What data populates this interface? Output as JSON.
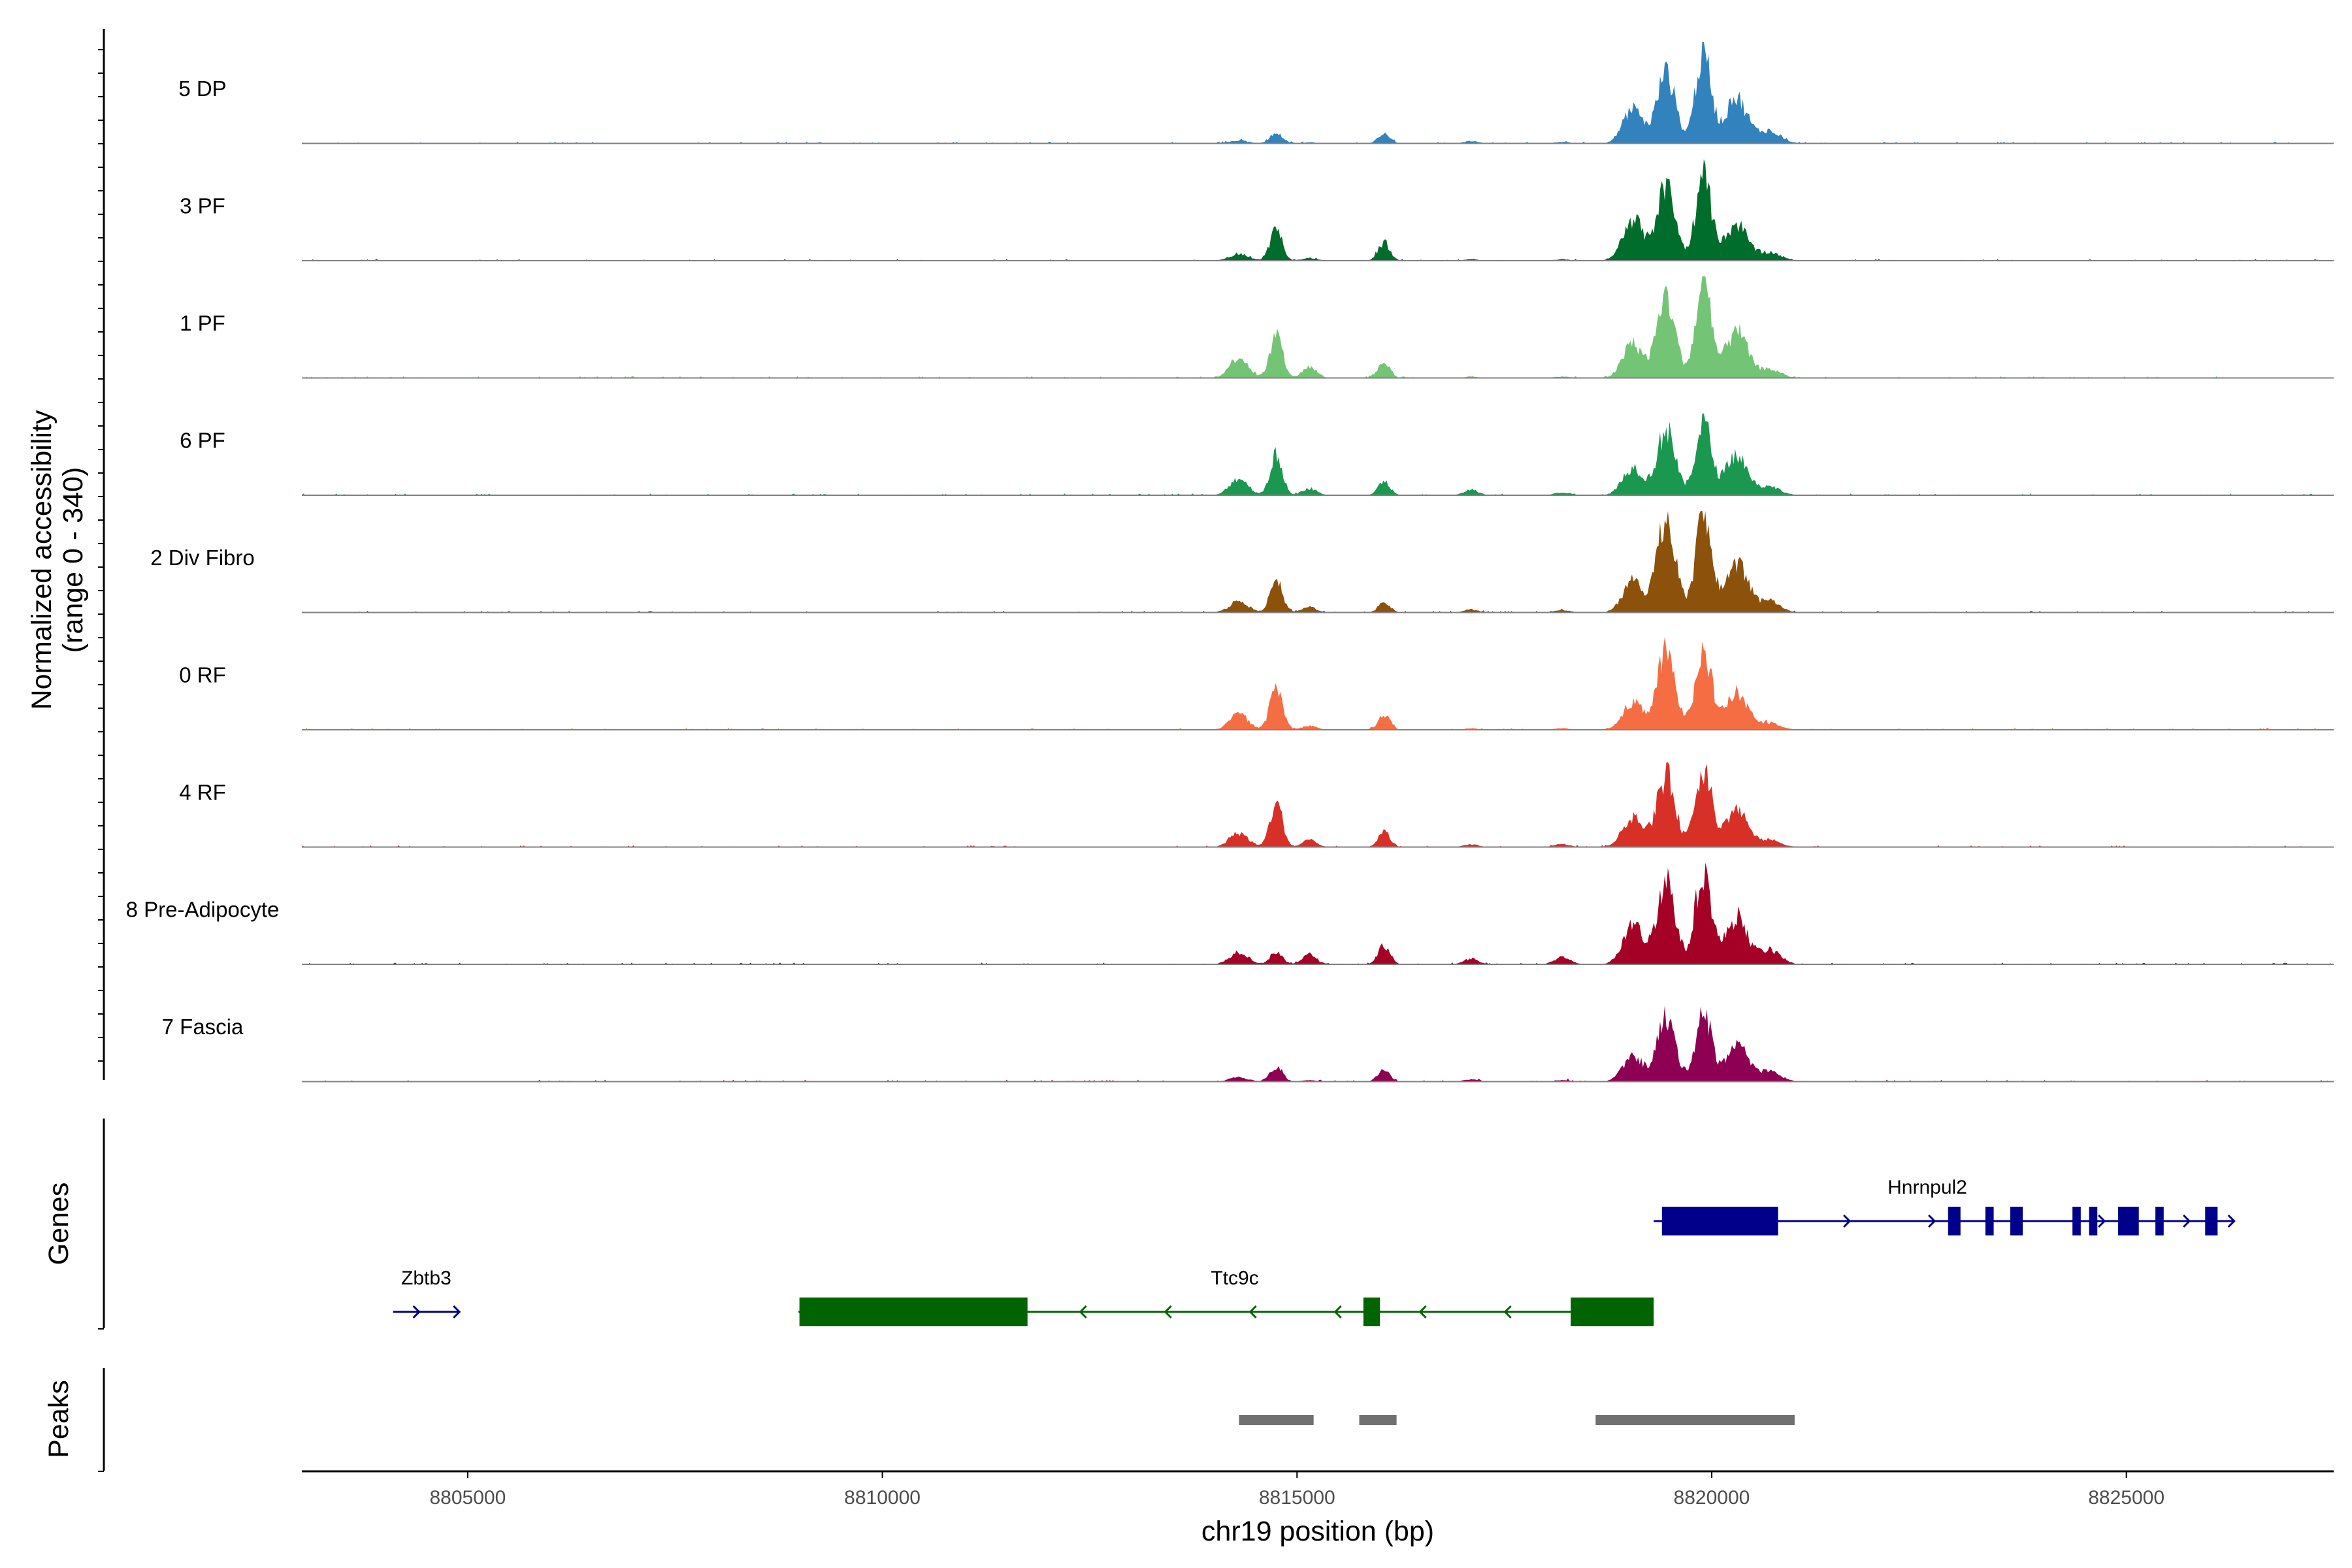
{
  "chart_data": {
    "type": "area",
    "title": "",
    "chromosome": "chr19",
    "xlabel": "chr19 position (bp)",
    "ylabel": "Normalized accessibility",
    "ylabel_range": "(range 0 - 340)",
    "xlim": [
      8803000,
      8827500
    ],
    "ylim": [
      0,
      340
    ],
    "x_ticks": [
      8805000,
      8810000,
      8815000,
      8820000,
      8825000
    ],
    "x_tick_labels": [
      "8805000",
      "8810000",
      "8815000",
      "8820000",
      "8825000"
    ],
    "peak_centers": [
      8814300,
      8814750,
      8815150,
      8816050,
      8817100,
      8818200,
      8819050,
      8819450,
      8819900,
      8820300,
      8820700
    ],
    "series": [
      {
        "name": "5 DP",
        "color": "#3182bd",
        "values": [
          10,
          35,
          4,
          35,
          8,
          5,
          120,
          245,
          320,
          160,
          45
        ]
      },
      {
        "name": "3 PF",
        "color": "#006d2c",
        "values": [
          25,
          105,
          10,
          65,
          5,
          5,
          150,
          260,
          295,
          130,
          30
        ]
      },
      {
        "name": "1 PF",
        "color": "#74c476",
        "values": [
          75,
          150,
          40,
          55,
          5,
          5,
          120,
          285,
          325,
          165,
          30
        ]
      },
      {
        "name": "6 PF",
        "color": "#1a9850",
        "values": [
          60,
          140,
          25,
          50,
          20,
          10,
          100,
          225,
          255,
          145,
          30
        ]
      },
      {
        "name": "2 Div Fibro",
        "color": "#8c510a",
        "values": [
          40,
          110,
          20,
          35,
          10,
          8,
          110,
          335,
          340,
          180,
          40
        ]
      },
      {
        "name": "0 RF",
        "color": "#f46d43",
        "values": [
          55,
          150,
          15,
          55,
          5,
          5,
          95,
          270,
          295,
          130,
          25
        ]
      },
      {
        "name": "4 RF",
        "color": "#d73027",
        "values": [
          50,
          155,
          25,
          55,
          10,
          10,
          110,
          250,
          285,
          135,
          25
        ]
      },
      {
        "name": "8 Pre-Adipocyte",
        "color": "#a50026",
        "values": [
          45,
          40,
          35,
          70,
          20,
          25,
          140,
          300,
          340,
          165,
          50
        ]
      },
      {
        "name": "7 Fascia",
        "color": "#8e0152",
        "values": [
          15,
          50,
          5,
          45,
          8,
          5,
          90,
          225,
          250,
          135,
          35
        ]
      }
    ],
    "genes": [
      {
        "name": "Zbtb3",
        "strand": "+",
        "start": 8804100,
        "end": 8804900,
        "exons": [],
        "row": 2,
        "color": "#00008b"
      },
      {
        "name": "Ttc9c",
        "strand": "-",
        "start": 8809000,
        "end": 8819300,
        "exons": [
          [
            8809000,
            8811750
          ],
          [
            8815800,
            8816000
          ],
          [
            8818300,
            8819300
          ]
        ],
        "row": 2,
        "color": "#006400"
      },
      {
        "name": "Hnrnpul2",
        "strand": "+",
        "start": 8819300,
        "end": 8826300,
        "exons": [
          [
            8819400,
            8820800
          ],
          [
            8822850,
            8823000
          ],
          [
            8823300,
            8823400
          ],
          [
            8823600,
            8823750
          ],
          [
            8824350,
            8824450
          ],
          [
            8824550,
            8824650
          ],
          [
            8824900,
            8825150
          ],
          [
            8825350,
            8825450
          ],
          [
            8825950,
            8826100
          ]
        ],
        "row": 1,
        "color": "#00008b"
      }
    ],
    "peaks": [
      [
        8814300,
        8815200
      ],
      [
        8815750,
        8816200
      ],
      [
        8818600,
        8821000
      ]
    ],
    "panel_labels": {
      "genes": "Genes",
      "peaks": "Peaks"
    },
    "colors": {
      "axis": "#000000",
      "baseline": "#808080",
      "peak_bar": "#707070",
      "tick_text": "#4d4d4d"
    }
  }
}
